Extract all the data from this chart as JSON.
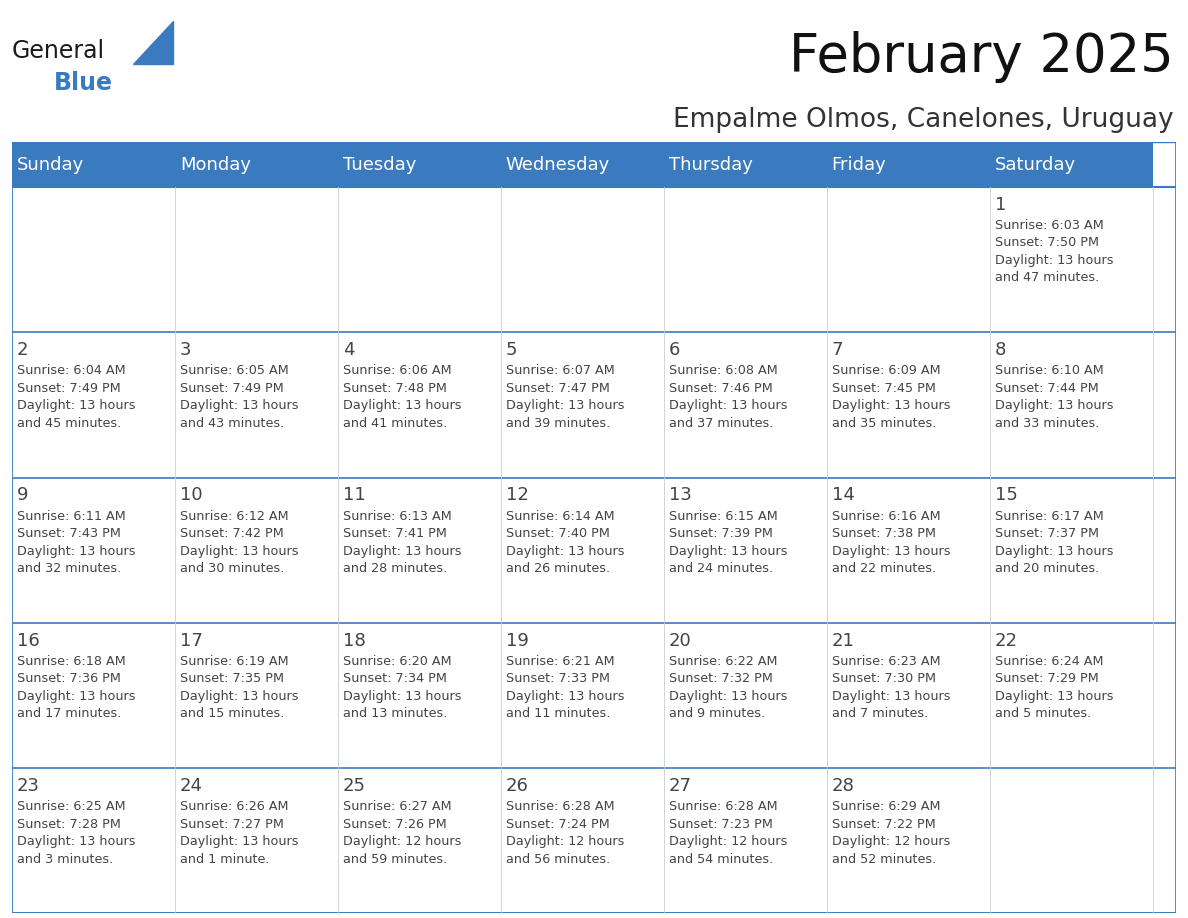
{
  "title": "February 2025",
  "subtitle": "Empalme Olmos, Canelones, Uruguay",
  "header_color": "#3a7abf",
  "header_text_color": "#ffffff",
  "cell_bg_color": "#ffffff",
  "border_color": "#3a7abf",
  "grid_color": "#cccccc",
  "text_color": "#444444",
  "day_headers": [
    "Sunday",
    "Monday",
    "Tuesday",
    "Wednesday",
    "Thursday",
    "Friday",
    "Saturday"
  ],
  "weeks": [
    [
      {
        "day": "",
        "info": ""
      },
      {
        "day": "",
        "info": ""
      },
      {
        "day": "",
        "info": ""
      },
      {
        "day": "",
        "info": ""
      },
      {
        "day": "",
        "info": ""
      },
      {
        "day": "",
        "info": ""
      },
      {
        "day": "1",
        "info": "Sunrise: 6:03 AM\nSunset: 7:50 PM\nDaylight: 13 hours\nand 47 minutes."
      }
    ],
    [
      {
        "day": "2",
        "info": "Sunrise: 6:04 AM\nSunset: 7:49 PM\nDaylight: 13 hours\nand 45 minutes."
      },
      {
        "day": "3",
        "info": "Sunrise: 6:05 AM\nSunset: 7:49 PM\nDaylight: 13 hours\nand 43 minutes."
      },
      {
        "day": "4",
        "info": "Sunrise: 6:06 AM\nSunset: 7:48 PM\nDaylight: 13 hours\nand 41 minutes."
      },
      {
        "day": "5",
        "info": "Sunrise: 6:07 AM\nSunset: 7:47 PM\nDaylight: 13 hours\nand 39 minutes."
      },
      {
        "day": "6",
        "info": "Sunrise: 6:08 AM\nSunset: 7:46 PM\nDaylight: 13 hours\nand 37 minutes."
      },
      {
        "day": "7",
        "info": "Sunrise: 6:09 AM\nSunset: 7:45 PM\nDaylight: 13 hours\nand 35 minutes."
      },
      {
        "day": "8",
        "info": "Sunrise: 6:10 AM\nSunset: 7:44 PM\nDaylight: 13 hours\nand 33 minutes."
      }
    ],
    [
      {
        "day": "9",
        "info": "Sunrise: 6:11 AM\nSunset: 7:43 PM\nDaylight: 13 hours\nand 32 minutes."
      },
      {
        "day": "10",
        "info": "Sunrise: 6:12 AM\nSunset: 7:42 PM\nDaylight: 13 hours\nand 30 minutes."
      },
      {
        "day": "11",
        "info": "Sunrise: 6:13 AM\nSunset: 7:41 PM\nDaylight: 13 hours\nand 28 minutes."
      },
      {
        "day": "12",
        "info": "Sunrise: 6:14 AM\nSunset: 7:40 PM\nDaylight: 13 hours\nand 26 minutes."
      },
      {
        "day": "13",
        "info": "Sunrise: 6:15 AM\nSunset: 7:39 PM\nDaylight: 13 hours\nand 24 minutes."
      },
      {
        "day": "14",
        "info": "Sunrise: 6:16 AM\nSunset: 7:38 PM\nDaylight: 13 hours\nand 22 minutes."
      },
      {
        "day": "15",
        "info": "Sunrise: 6:17 AM\nSunset: 7:37 PM\nDaylight: 13 hours\nand 20 minutes."
      }
    ],
    [
      {
        "day": "16",
        "info": "Sunrise: 6:18 AM\nSunset: 7:36 PM\nDaylight: 13 hours\nand 17 minutes."
      },
      {
        "day": "17",
        "info": "Sunrise: 6:19 AM\nSunset: 7:35 PM\nDaylight: 13 hours\nand 15 minutes."
      },
      {
        "day": "18",
        "info": "Sunrise: 6:20 AM\nSunset: 7:34 PM\nDaylight: 13 hours\nand 13 minutes."
      },
      {
        "day": "19",
        "info": "Sunrise: 6:21 AM\nSunset: 7:33 PM\nDaylight: 13 hours\nand 11 minutes."
      },
      {
        "day": "20",
        "info": "Sunrise: 6:22 AM\nSunset: 7:32 PM\nDaylight: 13 hours\nand 9 minutes."
      },
      {
        "day": "21",
        "info": "Sunrise: 6:23 AM\nSunset: 7:30 PM\nDaylight: 13 hours\nand 7 minutes."
      },
      {
        "day": "22",
        "info": "Sunrise: 6:24 AM\nSunset: 7:29 PM\nDaylight: 13 hours\nand 5 minutes."
      }
    ],
    [
      {
        "day": "23",
        "info": "Sunrise: 6:25 AM\nSunset: 7:28 PM\nDaylight: 13 hours\nand 3 minutes."
      },
      {
        "day": "24",
        "info": "Sunrise: 6:26 AM\nSunset: 7:27 PM\nDaylight: 13 hours\nand 1 minute."
      },
      {
        "day": "25",
        "info": "Sunrise: 6:27 AM\nSunset: 7:26 PM\nDaylight: 12 hours\nand 59 minutes."
      },
      {
        "day": "26",
        "info": "Sunrise: 6:28 AM\nSunset: 7:24 PM\nDaylight: 12 hours\nand 56 minutes."
      },
      {
        "day": "27",
        "info": "Sunrise: 6:28 AM\nSunset: 7:23 PM\nDaylight: 12 hours\nand 54 minutes."
      },
      {
        "day": "28",
        "info": "Sunrise: 6:29 AM\nSunset: 7:22 PM\nDaylight: 12 hours\nand 52 minutes."
      },
      {
        "day": "",
        "info": ""
      }
    ]
  ],
  "logo_general_color": "#1a1a1a",
  "logo_blue_color": "#3a7abf",
  "fig_width": 11.88,
  "fig_height": 9.18,
  "title_fontsize": 38,
  "subtitle_fontsize": 19,
  "header_fontsize": 13,
  "day_num_fontsize": 13,
  "info_fontsize": 9.2
}
